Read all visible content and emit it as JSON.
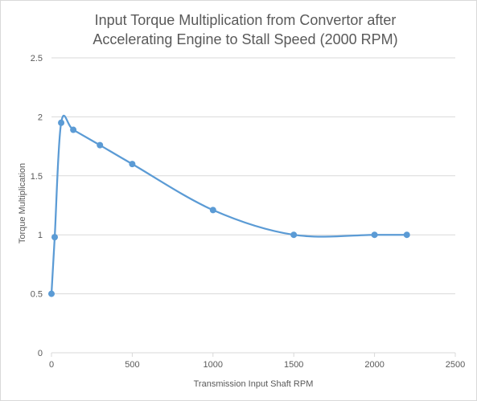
{
  "chart_data": {
    "type": "line",
    "title_lines": [
      "Input Torque Multiplication from Convertor after",
      "Accelerating Engine to Stall Speed (2000 RPM)"
    ],
    "xlabel": "Transmission Input Shaft RPM",
    "ylabel": "Torque Multiplication",
    "xlim": [
      0,
      2500
    ],
    "ylim": [
      0,
      2.5
    ],
    "x_ticks": [
      "0",
      "500",
      "1000",
      "1500",
      "2000",
      "2500"
    ],
    "y_ticks": [
      "0",
      "0.5",
      "1",
      "1.5",
      "2",
      "2.5"
    ],
    "grid": "horizontal",
    "line_style": "smoothed",
    "series": [
      {
        "x": [
          0,
          20,
          60,
          135,
          300,
          500,
          1000,
          1500,
          2000,
          2200
        ],
        "y": [
          0.5,
          0.98,
          1.95,
          1.89,
          1.76,
          1.6,
          1.21,
          1.0,
          1.0,
          1.0
        ]
      }
    ],
    "colors": {
      "series": "#5b9bd5",
      "grid": "#d9d9d9",
      "text": "#595959"
    }
  }
}
